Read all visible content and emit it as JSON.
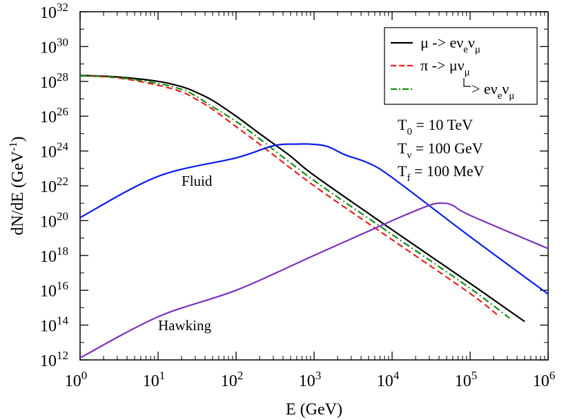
{
  "chart_data": {
    "type": "line",
    "xlabel": "E (GeV)",
    "ylabel_main": "dN/dE (GeV",
    "ylabel_exp": "-1",
    "ylabel_close": ")",
    "xscale": "log",
    "yscale": "log",
    "xlim": [
      1,
      1000000
    ],
    "ylim": [
      1000000000000.0,
      1e+32
    ],
    "x_ticks": [
      {
        "base": "10",
        "exp": "0",
        "value": 1
      },
      {
        "base": "10",
        "exp": "1",
        "value": 10
      },
      {
        "base": "10",
        "exp": "2",
        "value": 100
      },
      {
        "base": "10",
        "exp": "3",
        "value": 1000
      },
      {
        "base": "10",
        "exp": "4",
        "value": 10000
      },
      {
        "base": "10",
        "exp": "5",
        "value": 100000
      },
      {
        "base": "10",
        "exp": "6",
        "value": 1000000
      }
    ],
    "y_ticks": [
      {
        "base": "10",
        "exp": "12",
        "value": 1000000000000.0
      },
      {
        "base": "10",
        "exp": "14",
        "value": 100000000000000.0
      },
      {
        "base": "10",
        "exp": "16",
        "value": 1e+16
      },
      {
        "base": "10",
        "exp": "18",
        "value": 1e+18
      },
      {
        "base": "10",
        "exp": "20",
        "value": 1e+20
      },
      {
        "base": "10",
        "exp": "22",
        "value": 1e+22
      },
      {
        "base": "10",
        "exp": "24",
        "value": 1e+24
      },
      {
        "base": "10",
        "exp": "26",
        "value": 1e+26
      },
      {
        "base": "10",
        "exp": "28",
        "value": 1e+28
      },
      {
        "base": "10",
        "exp": "30",
        "value": 1e+30
      },
      {
        "base": "10",
        "exp": "32",
        "value": 1e+32
      }
    ],
    "series": [
      {
        "color": "#000000",
        "dash": "solid",
        "x": [
          1,
          3,
          10,
          20,
          30,
          50,
          100,
          200,
          500,
          1000,
          10000,
          100000,
          500000
        ],
        "y": [
          2.2e+28,
          1.8e+28,
          1e+28,
          5e+27,
          2.5e+27,
          8e+26,
          1e+26,
          1e+25,
          5e+23,
          4e+22,
          3e+19,
          2.5e+16,
          160000000000000.0
        ]
      },
      {
        "color": "#ee1c1c",
        "dash": "dashed",
        "x": [
          1,
          3,
          10,
          20,
          30,
          50,
          100,
          200,
          1000,
          10000,
          100000,
          240000
        ],
        "y": [
          2.1e+28,
          1.6e+28,
          6e+27,
          2.5e+27,
          1e+27,
          2.5e+26,
          2.5e+25,
          2.5e+24,
          1e+22,
          8e+18,
          6500000000000000.0,
          300000000000000.0
        ]
      },
      {
        "color": "#128c12",
        "dash": "dashdot",
        "x": [
          1,
          3,
          10,
          20,
          30,
          50,
          100,
          200,
          1000,
          10000,
          100000,
          320000
        ],
        "y": [
          2.1e+28,
          1.7e+28,
          7.5e+27,
          3.5e+27,
          1.5e+27,
          3.5e+26,
          5e+25,
          5e+24,
          2e+22,
          1.6e+19,
          1.3e+16,
          250000000000000.0
        ]
      },
      {
        "color": "#0a1ce8",
        "dash": "solid",
        "x": [
          1,
          10,
          100,
          300,
          600,
          1000,
          1500,
          2500,
          5000,
          10000,
          100000,
          1000000
        ],
        "y": [
          1.5e+20,
          3.5e+22,
          4e+23,
          2e+24,
          2.5e+24,
          2.4e+24,
          1.8e+24,
          6e+23,
          2e+23,
          3e+22,
          1.2e+19,
          6000000000000000.0
        ]
      },
      {
        "color": "#7a32c0",
        "dash": "solid",
        "x": [
          1,
          10,
          100,
          1000,
          10000,
          30000,
          45000,
          60000,
          100000,
          1000000
        ],
        "y": [
          1300000000000.0,
          300000000000000.0,
          1e+16,
          1e+18,
          1e+20,
          7.5e+20,
          1e+21,
          7.5e+20,
          2e+20,
          2.5e+18
        ]
      }
    ],
    "legend": {
      "position": "top-right",
      "entries": [
        {
          "parts": [
            {
              "t": "μ -> eν"
            },
            {
              "t": "e",
              "sub": true
            },
            {
              "t": "ν"
            },
            {
              "t": "μ",
              "sub": true
            }
          ],
          "color": "#000000",
          "dash": "solid"
        },
        {
          "parts": [
            {
              "t": "π -> μν"
            },
            {
              "t": "μ",
              "sub": true
            }
          ],
          "color": "#ee1c1c",
          "dash": "dashed"
        },
        {
          "parts": [
            {
              "t": "> eν"
            },
            {
              "t": "e",
              "sub": true
            },
            {
              "t": "ν"
            },
            {
              "t": "μ",
              "sub": true
            }
          ],
          "color": "#128c12",
          "dash": "dashdot"
        }
      ]
    },
    "annotations": [
      {
        "main": "Fluid",
        "x": 20,
        "y": 1e+22
      },
      {
        "main": "Hawking",
        "x": 10,
        "y": 50000000000000.0
      }
    ],
    "params": [
      {
        "sym": "T",
        "sub": "0",
        "rest": " = 10 TeV"
      },
      {
        "sym": "T",
        "sub": "ν",
        "rest": " = 100 GeV"
      },
      {
        "sym": "T",
        "sub": "f",
        "rest": " = 100 MeV"
      }
    ]
  }
}
